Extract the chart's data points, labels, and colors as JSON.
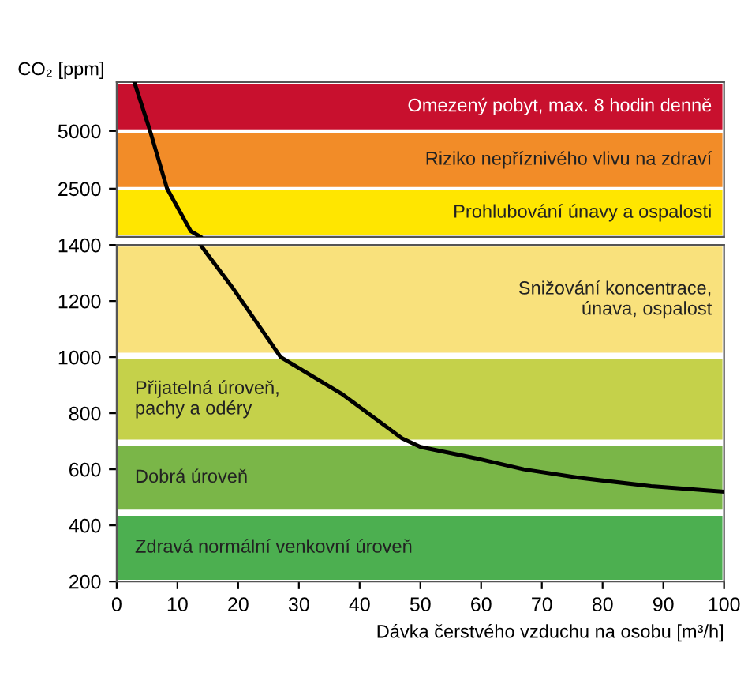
{
  "chart_data": [
    {
      "type": "line",
      "ylabel": "CO₂ [ppm]",
      "xlim": [
        0,
        100
      ],
      "ylim": [
        1400,
        9000
      ],
      "log": "y",
      "yticks": [
        2500,
        5000
      ],
      "tick_labels": "y",
      "grid": false,
      "legend": false,
      "marker": "none",
      "line_style": "solid",
      "series": [
        {
          "color": "#000000",
          "x": [
            2.9,
            5.5,
            8.3,
            12.2,
            13.8
          ],
          "values": [
            9000,
            5000,
            2500,
            1500,
            1400
          ]
        }
      ],
      "bands": [
        {
          "axis": "y",
          "from": 1400,
          "to": 2500,
          "label": "Prohlubování únavy a ospalosti",
          "color": "#ffe600"
        },
        {
          "axis": "y",
          "from": 2500,
          "to": 5000,
          "label": "Riziko nepříznivého vlivu na zdraví",
          "color": "#f28c28"
        },
        {
          "axis": "y",
          "from": 5000,
          "to": 9000,
          "label": "Omezený pobyt, max. 8 hodin denně",
          "color": "#c8102e"
        }
      ]
    },
    {
      "type": "line",
      "xlabel": "Dávka čerstvého vzduchu na osobu [m³/h]",
      "xlim": [
        0,
        100
      ],
      "xticks": [
        0,
        10,
        20,
        30,
        40,
        50,
        60,
        70,
        80,
        90,
        100
      ],
      "ylim": [
        200,
        1400
      ],
      "yticks": [
        200,
        400,
        600,
        800,
        1000,
        1200,
        1400
      ],
      "grid": false,
      "legend": false,
      "marker": "none",
      "line_style": "solid",
      "series": [
        {
          "color": "#000000",
          "x": [
            13.8,
            19,
            27,
            37,
            47,
            50,
            59,
            67,
            76,
            88,
            100
          ],
          "values": [
            1400,
            1250,
            1000,
            870,
            710,
            680,
            640,
            600,
            570,
            540,
            520
          ]
        }
      ],
      "bands": [
        {
          "axis": "y",
          "from": 200,
          "to": 440,
          "label": "Zdravá normální venkovní úroveň",
          "color": "#4caf50"
        },
        {
          "axis": "y",
          "from": 450,
          "to": 690,
          "label": "Dobrá úroveň",
          "color": "#7ab648"
        },
        {
          "axis": "y",
          "from": 700,
          "to": 1000,
          "label": "Přijatelná úroveň,\npachy a odéry",
          "color": "#c5d14a"
        },
        {
          "axis": "y",
          "from": 1010,
          "to": 1400,
          "label": "Snižování koncentrace,\núnava, ospalost",
          "color": "#f9e17c"
        }
      ]
    }
  ]
}
